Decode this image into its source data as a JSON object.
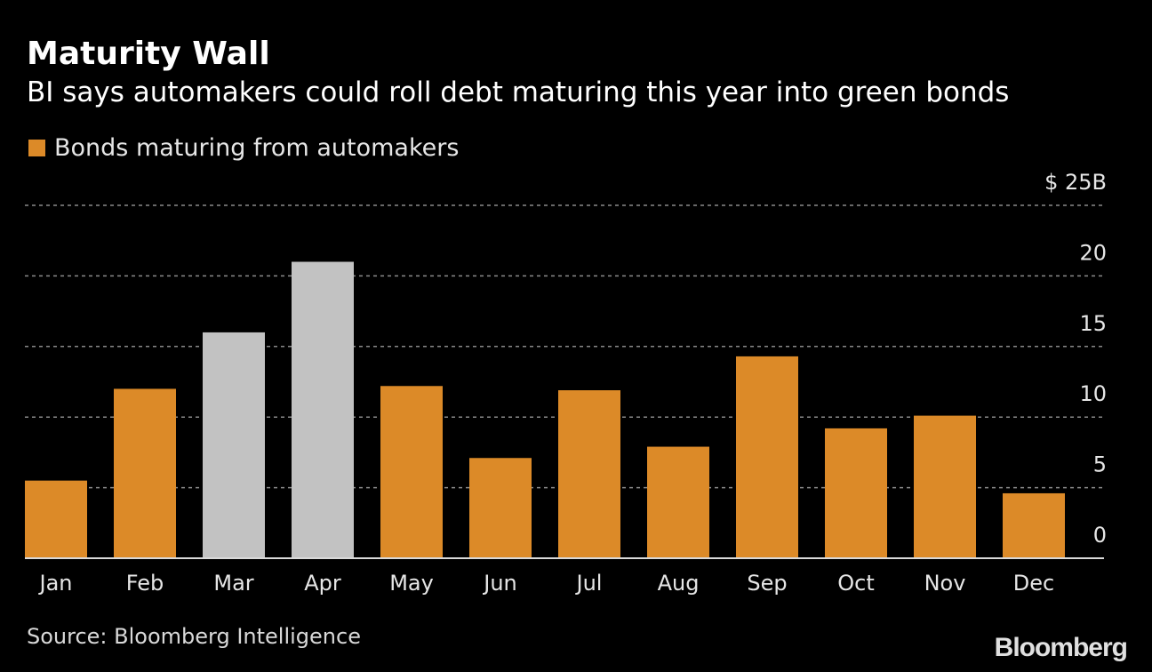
{
  "header": {
    "title": "Maturity Wall",
    "subtitle": "BI says automakers could roll debt maturing this year into green bonds"
  },
  "legend": {
    "label": "Bonds maturing from automakers"
  },
  "footer": {
    "source": "Source: Bloomberg Intelligence",
    "brand": "Bloomberg"
  },
  "colors": {
    "background": "#000000",
    "primary": "#dc8a28",
    "highlight": "#c2c2c2",
    "grid": "#8a8a8a"
  },
  "chart_data": {
    "type": "bar",
    "categories": [
      "Jan",
      "Feb",
      "Mar",
      "Apr",
      "May",
      "Jun",
      "Jul",
      "Aug",
      "Sep",
      "Oct",
      "Nov",
      "Dec"
    ],
    "values": [
      5.5,
      12.0,
      16.0,
      21.0,
      12.2,
      7.1,
      11.9,
      7.9,
      14.3,
      9.2,
      10.1,
      4.6
    ],
    "highlighted": [
      "Mar",
      "Apr"
    ],
    "series": [
      {
        "name": "Bonds maturing from automakers",
        "values": [
          5.5,
          12.0,
          16.0,
          21.0,
          12.2,
          7.1,
          11.9,
          7.9,
          14.3,
          9.2,
          10.1,
          4.6
        ]
      }
    ],
    "ylim": [
      0,
      25
    ],
    "y_ticks": [
      0,
      5,
      10,
      15,
      20,
      25
    ],
    "y_tick_labels": [
      "0",
      "5",
      "10",
      "15",
      "20",
      "$ 25B"
    ],
    "grid": true,
    "y_axis_side": "right",
    "legend_position": "top-left"
  }
}
